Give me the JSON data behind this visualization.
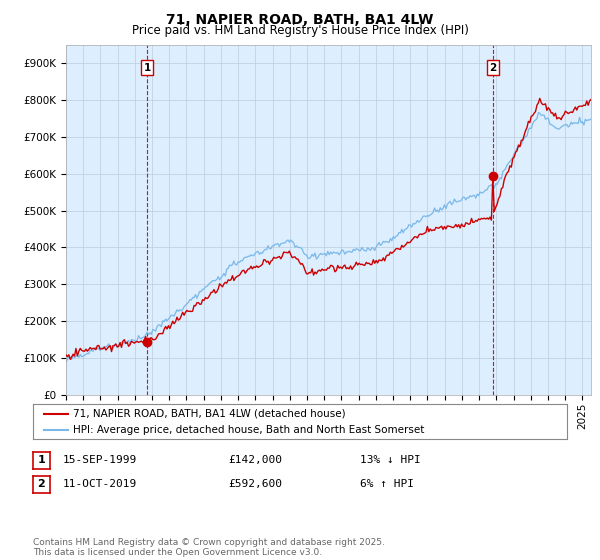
{
  "title": "71, NAPIER ROAD, BATH, BA1 4LW",
  "subtitle": "Price paid vs. HM Land Registry's House Price Index (HPI)",
  "ylim": [
    0,
    950000
  ],
  "yticks": [
    0,
    100000,
    200000,
    300000,
    400000,
    500000,
    600000,
    700000,
    800000,
    900000
  ],
  "ytick_labels": [
    "£0",
    "£100K",
    "£200K",
    "£300K",
    "£400K",
    "£500K",
    "£600K",
    "£700K",
    "£800K",
    "£900K"
  ],
  "hpi_color": "#7ab8e8",
  "price_color": "#cc0000",
  "vline_color": "#cc0000",
  "plot_bg_color": "#ddeeff",
  "background_color": "#ffffff",
  "grid_color": "#bbccdd",
  "transaction1": {
    "date": "15-SEP-1999",
    "price": 142000,
    "price_str": "£142,000",
    "label": "13% ↓ HPI",
    "num": "1",
    "year": 1999.708
  },
  "transaction2": {
    "date": "11-OCT-2019",
    "price": 592600,
    "price_str": "£592,600",
    "label": "6% ↑ HPI",
    "num": "2",
    "year": 2019.792
  },
  "legend_entry1": "71, NAPIER ROAD, BATH, BA1 4LW (detached house)",
  "legend_entry2": "HPI: Average price, detached house, Bath and North East Somerset",
  "footer": "Contains HM Land Registry data © Crown copyright and database right 2025.\nThis data is licensed under the Open Government Licence v3.0.",
  "title_fontsize": 10,
  "subtitle_fontsize": 8.5,
  "tick_fontsize": 7.5,
  "legend_fontsize": 7.5,
  "footer_fontsize": 6.5
}
